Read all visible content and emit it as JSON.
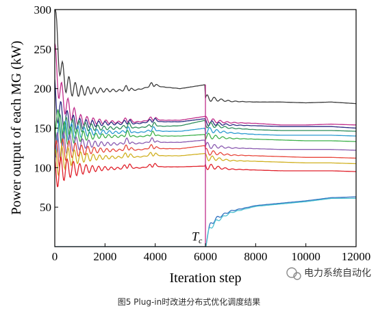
{
  "chart_data": {
    "type": "line",
    "xlabel": "Iteration step",
    "ylabel": "Power output of each MG (kW)",
    "xlim": [
      0,
      12000
    ],
    "ylim": [
      0,
      300
    ],
    "x_ticks": [
      "0",
      "2000",
      "4000",
      "6000",
      "8000",
      "10000",
      "12000"
    ],
    "y_ticks": [
      "50",
      "100",
      "150",
      "200",
      "250",
      "300"
    ],
    "grid": false,
    "annotation": {
      "text": "T",
      "sub": "c",
      "x": 6000
    },
    "series": [
      {
        "color": "#3a3a3a",
        "start": 300,
        "phase1": [
          202,
          197,
          198,
          197,
          203,
          200,
          205
        ],
        "phase2": [
          188,
          184,
          183,
          183,
          182,
          183,
          181
        ]
      },
      {
        "color": "#c02c8a",
        "start": 240,
        "phase1": [
          185,
          160,
          158,
          157,
          160,
          160,
          165
        ],
        "phase2": [
          160,
          157,
          156,
          154,
          154,
          155,
          154
        ]
      },
      {
        "color": "#2a2a80",
        "start": 190,
        "phase1": [
          160,
          155,
          156,
          155,
          158,
          158,
          162
        ],
        "phase2": [
          157,
          154,
          153,
          152,
          152,
          152,
          150
        ]
      },
      {
        "color": "#2c8c5a",
        "start": 150,
        "phase1": [
          150,
          152,
          150,
          150,
          152,
          153,
          160
        ],
        "phase2": [
          155,
          150,
          148,
          147,
          147,
          147,
          146
        ]
      },
      {
        "color": "#2a9ad0",
        "start": 130,
        "phase1": [
          148,
          145,
          145,
          144,
          146,
          146,
          150
        ],
        "phase2": [
          148,
          144,
          142,
          141,
          141,
          141,
          140
        ]
      },
      {
        "color": "#3cb04a",
        "start": 170,
        "phase1": [
          140,
          140,
          140,
          139,
          140,
          140,
          142
        ],
        "phase2": [
          140,
          137,
          136,
          135,
          134,
          134,
          133
        ]
      },
      {
        "color": "#8a5ab0",
        "start": 120,
        "phase1": [
          132,
          130,
          130,
          130,
          132,
          132,
          135
        ],
        "phase2": [
          128,
          125,
          124,
          123,
          123,
          123,
          122
        ]
      },
      {
        "color": "#e8463a",
        "start": 110,
        "phase1": [
          125,
          122,
          122,
          122,
          124,
          124,
          128
        ],
        "phase2": [
          120,
          116,
          115,
          114,
          113,
          113,
          112
        ]
      },
      {
        "color": "#d0b020",
        "start": 100,
        "phase1": [
          115,
          113,
          113,
          113,
          115,
          115,
          118
        ],
        "phase2": [
          113,
          109,
          108,
          107,
          106,
          106,
          105
        ]
      },
      {
        "color": "#e0202a",
        "start": 90,
        "phase1": [
          100,
          98,
          99,
          99,
          101,
          101,
          102
        ],
        "phase2": [
          102,
          98,
          97,
          96,
          96,
          96,
          95
        ]
      },
      {
        "color": "#3070c0",
        "start": 0,
        "phase1": [
          0,
          0,
          0,
          0,
          0,
          0,
          0
        ],
        "phase2": [
          30,
          45,
          52,
          55,
          58,
          62,
          63
        ]
      },
      {
        "color": "#4ac0d0",
        "start": 0,
        "phase1": [
          0,
          0,
          0,
          0,
          0,
          0,
          0
        ],
        "phase2": [
          25,
          43,
          51,
          54,
          57,
          61,
          61
        ]
      }
    ]
  },
  "caption": "图5  Plug-in时改进分布式优化调度结果",
  "watermark": "电力系统自动化"
}
